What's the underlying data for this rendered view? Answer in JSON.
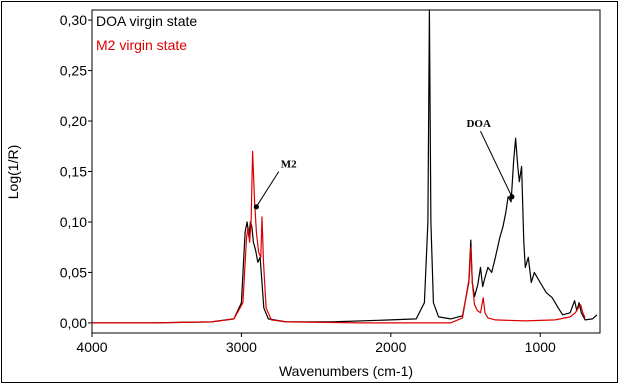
{
  "chart_data": {
    "type": "line",
    "title": "",
    "xlabel": "Wavenumbers (cm-1)",
    "ylabel": "Log(1/R)",
    "xlim": [
      4000,
      600
    ],
    "ylim": [
      -0.01,
      0.31
    ],
    "x_reversed": true,
    "grid": false,
    "legend_position": "top-left",
    "x_ticks": [
      4000,
      3000,
      2000,
      1000
    ],
    "x_tick_labels": [
      "4000",
      "3000",
      "2000",
      "1000"
    ],
    "y_ticks": [
      0.0,
      0.05,
      0.1,
      0.15,
      0.2,
      0.25,
      0.3
    ],
    "y_tick_labels": [
      "0,00",
      "0,05",
      "0,10",
      "0,15",
      "0,20",
      "0,25",
      "0,30"
    ],
    "series": [
      {
        "name": "DOA virgin state",
        "color": "#000000",
        "points": [
          [
            4000,
            0.0
          ],
          [
            3600,
            0.0
          ],
          [
            3200,
            0.001
          ],
          [
            3050,
            0.004
          ],
          [
            3000,
            0.02
          ],
          [
            2975,
            0.09
          ],
          [
            2962,
            0.1
          ],
          [
            2950,
            0.085
          ],
          [
            2940,
            0.1
          ],
          [
            2930,
            0.095
          ],
          [
            2920,
            0.08
          ],
          [
            2905,
            0.072
          ],
          [
            2890,
            0.06
          ],
          [
            2875,
            0.065
          ],
          [
            2865,
            0.045
          ],
          [
            2850,
            0.015
          ],
          [
            2820,
            0.004
          ],
          [
            2700,
            0.001
          ],
          [
            2400,
            0.001
          ],
          [
            2000,
            0.003
          ],
          [
            1830,
            0.004
          ],
          [
            1775,
            0.02
          ],
          [
            1752,
            0.1
          ],
          [
            1742,
            0.31
          ],
          [
            1732,
            0.1
          ],
          [
            1715,
            0.02
          ],
          [
            1680,
            0.006
          ],
          [
            1600,
            0.004
          ],
          [
            1520,
            0.007
          ],
          [
            1478,
            0.04
          ],
          [
            1465,
            0.082
          ],
          [
            1455,
            0.04
          ],
          [
            1440,
            0.026
          ],
          [
            1418,
            0.038
          ],
          [
            1400,
            0.055
          ],
          [
            1385,
            0.036
          ],
          [
            1370,
            0.045
          ],
          [
            1350,
            0.055
          ],
          [
            1325,
            0.05
          ],
          [
            1300,
            0.065
          ],
          [
            1270,
            0.085
          ],
          [
            1250,
            0.095
          ],
          [
            1230,
            0.11
          ],
          [
            1215,
            0.125
          ],
          [
            1195,
            0.12
          ],
          [
            1178,
            0.16
          ],
          [
            1165,
            0.183
          ],
          [
            1150,
            0.155
          ],
          [
            1140,
            0.14
          ],
          [
            1125,
            0.155
          ],
          [
            1110,
            0.08
          ],
          [
            1100,
            0.055
          ],
          [
            1080,
            0.065
          ],
          [
            1060,
            0.04
          ],
          [
            1040,
            0.05
          ],
          [
            1000,
            0.04
          ],
          [
            960,
            0.03
          ],
          [
            920,
            0.025
          ],
          [
            880,
            0.015
          ],
          [
            850,
            0.008
          ],
          [
            800,
            0.01
          ],
          [
            770,
            0.022
          ],
          [
            755,
            0.012
          ],
          [
            740,
            0.02
          ],
          [
            725,
            0.01
          ],
          [
            700,
            0.003
          ],
          [
            650,
            0.004
          ],
          [
            620,
            0.008
          ]
        ]
      },
      {
        "name": "M2 virgin state",
        "color": "#dd0000",
        "points": [
          [
            4000,
            0.0
          ],
          [
            3600,
            0.0
          ],
          [
            3200,
            0.001
          ],
          [
            3050,
            0.004
          ],
          [
            2990,
            0.02
          ],
          [
            2965,
            0.085
          ],
          [
            2955,
            0.095
          ],
          [
            2945,
            0.08
          ],
          [
            2935,
            0.1
          ],
          [
            2925,
            0.17
          ],
          [
            2912,
            0.12
          ],
          [
            2900,
            0.09
          ],
          [
            2885,
            0.07
          ],
          [
            2870,
            0.065
          ],
          [
            2862,
            0.105
          ],
          [
            2852,
            0.06
          ],
          [
            2835,
            0.015
          ],
          [
            2800,
            0.003
          ],
          [
            2700,
            0.001
          ],
          [
            2200,
            0.0
          ],
          [
            1800,
            0.0
          ],
          [
            1600,
            0.0
          ],
          [
            1520,
            0.005
          ],
          [
            1475,
            0.045
          ],
          [
            1465,
            0.075
          ],
          [
            1455,
            0.04
          ],
          [
            1440,
            0.018
          ],
          [
            1420,
            0.012
          ],
          [
            1400,
            0.01
          ],
          [
            1382,
            0.025
          ],
          [
            1370,
            0.01
          ],
          [
            1350,
            0.005
          ],
          [
            1300,
            0.003
          ],
          [
            1100,
            0.002
          ],
          [
            900,
            0.003
          ],
          [
            800,
            0.006
          ],
          [
            765,
            0.01
          ],
          [
            745,
            0.015
          ],
          [
            730,
            0.018
          ],
          [
            715,
            0.01
          ],
          [
            700,
            0.005
          ]
        ]
      }
    ],
    "annotations": [
      {
        "text": "M2",
        "point": [
          2900,
          0.115
        ],
        "label_at": [
          2750,
          0.15
        ]
      },
      {
        "text": "DOA",
        "point": [
          1190,
          0.125
        ],
        "label_at": [
          1400,
          0.19
        ]
      }
    ]
  }
}
